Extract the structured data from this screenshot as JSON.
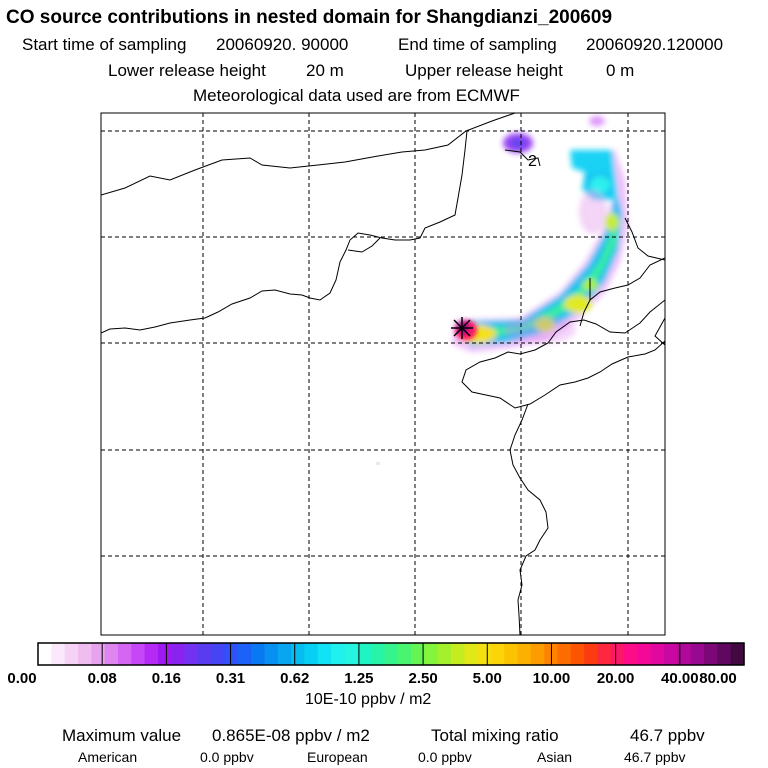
{
  "header": {
    "title": "CO  source contributions in nested domain for Shangdianzi_200609",
    "start_label": "Start time of sampling",
    "start_value": "20060920. 90000",
    "end_label": "End time of sampling",
    "end_value": "20060920.120000",
    "lower_label": "Lower release height",
    "lower_value": "20 m",
    "upper_label": "Upper release height",
    "upper_value": "0 m",
    "met_line": "Meteorological data used are from ECMWF"
  },
  "map": {
    "contour_label": "2",
    "receptor_marker": "receptor-star"
  },
  "legend": {
    "ticks": [
      "0.00",
      "0.08",
      "0.16",
      "0.31",
      "0.62",
      "1.25",
      "2.50",
      "5.00",
      "10.00",
      "20.00",
      "40.00",
      "80.00"
    ],
    "units": "10E-10 ppbv / m2",
    "colors": [
      "#ffffff",
      "#fbe9fb",
      "#f6d3f6",
      "#f0bdf0",
      "#e8a3ee",
      "#df85f0",
      "#d466f3",
      "#c647f5",
      "#b52af5",
      "#9f1af0",
      "#8a23f0",
      "#7232f0",
      "#5a3cf0",
      "#4545f5",
      "#2f52f8",
      "#1d62f8",
      "#0a78f0",
      "#0890f0",
      "#08a6f0",
      "#08bcf0",
      "#08d0f4",
      "#10e4f4",
      "#20f0ee",
      "#24f4e0",
      "#20f4c4",
      "#28f4a8",
      "#36f48c",
      "#48f470",
      "#64f454",
      "#84f43c",
      "#a4f02c",
      "#c4ec20",
      "#e0e818",
      "#f4e010",
      "#fcd408",
      "#fcc400",
      "#fcb000",
      "#fc9c00",
      "#fc8400",
      "#fc6c00",
      "#fc5400",
      "#fc3c10",
      "#fc2840",
      "#fc1868",
      "#fc0c88",
      "#f40898",
      "#e008a0",
      "#c808a0",
      "#b00898",
      "#980890",
      "#7c0878",
      "#600860",
      "#420840"
    ]
  },
  "footer": {
    "max_label": "Maximum value",
    "max_value": "0.865E-08 ppbv / m2",
    "total_label": "Total mixing ratio",
    "total_value": "46.7 ppbv",
    "american_label": "American",
    "american_value": "0.0 ppbv",
    "european_label": "European",
    "european_value": "0.0 ppbv",
    "asian_label": "Asian",
    "asian_value": "46.7 ppbv"
  },
  "colors": {
    "frame": "#000000",
    "grid": "#000000",
    "receptor": "#000000"
  }
}
